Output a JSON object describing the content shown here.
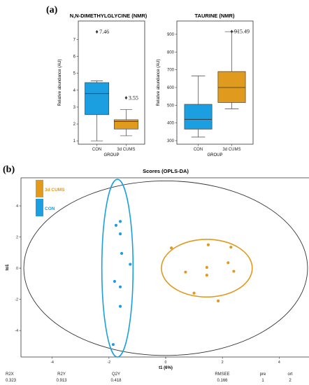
{
  "panel_a_label": "(a)",
  "panel_b_label": "(b)",
  "colors": {
    "con": "#1b9fe0",
    "cums": "#e09a1e",
    "axis": "#333333",
    "ellipse": "#333333"
  },
  "chart_data": [
    {
      "type": "box",
      "title": "N,N-DIMETHYLGLYCINE (NMR)",
      "xlabel": "GROUP",
      "ylabel": "Relative abundance (AU)",
      "categories": [
        "CON",
        "3d CUMS"
      ],
      "ylim": [
        0.8,
        8.1
      ],
      "yticks": [
        1,
        2,
        3,
        4,
        5,
        6,
        7
      ],
      "boxes": [
        {
          "group": "CON",
          "whisker_low": 1.0,
          "q1": 2.55,
          "median": 3.8,
          "q3": 4.45,
          "whisker_high": 4.55,
          "outlier": 7.46,
          "outlier_label": "7.46"
        },
        {
          "group": "3d CUMS",
          "whisker_low": 1.3,
          "q1": 1.7,
          "median": 2.15,
          "q3": 2.25,
          "whisker_high": 2.85,
          "outlier": 3.55,
          "outlier_label": "3.55"
        }
      ]
    },
    {
      "type": "box",
      "title": "TAURINE (NMR)",
      "xlabel": "GROUP",
      "ylabel": "Relative abundance (AU)",
      "categories": [
        "CON",
        "3d CUMS"
      ],
      "ylim": [
        280,
        975
      ],
      "yticks": [
        300,
        400,
        500,
        600,
        700,
        800,
        900
      ],
      "boxes": [
        {
          "group": "CON",
          "whisker_low": 320,
          "q1": 365,
          "median": 420,
          "q3": 505,
          "whisker_high": 665
        },
        {
          "group": "3d CUMS",
          "whisker_low": 480,
          "q1": 515,
          "median": 600,
          "q3": 690,
          "whisker_high": 915,
          "outlier": 915.49,
          "outlier_label": "915.49"
        }
      ]
    },
    {
      "type": "scatter",
      "title": "Scores (OPLS-DA)",
      "xlabel": "t1 (6%)",
      "ylabel": "to1",
      "xlim": [
        -5.1,
        5.1
      ],
      "ylim": [
        -5.7,
        5.8
      ],
      "xticks": [
        -4,
        -2,
        0,
        2,
        4
      ],
      "yticks": [
        -4,
        -2,
        0,
        2,
        4
      ],
      "legend": [
        "3d CUMS",
        "CON"
      ],
      "series": [
        {
          "name": "3d CUMS",
          "ellipse": {
            "cx": 1.45,
            "cy": 0,
            "rx": 1.6,
            "ry": 1.85
          },
          "x": [
            0.2,
            1.5,
            2.3,
            0.7,
            1.45,
            1.45,
            2.2,
            2.4,
            1.0,
            1.85
          ],
          "y": [
            1.3,
            1.5,
            1.35,
            -0.25,
            0.05,
            -0.45,
            0.35,
            -0.2,
            -1.6,
            -2.1
          ]
        },
        {
          "name": "CON",
          "ellipse": {
            "cx": -1.7,
            "cy": 0,
            "rx": 0.55,
            "ry": 5.7
          },
          "x": [
            -1.6,
            -1.75,
            -1.6,
            -1.55,
            -1.25,
            -1.8,
            -1.6,
            -1.6,
            -1.85
          ],
          "y": [
            3.0,
            2.75,
            2.2,
            0.95,
            0.25,
            -0.85,
            -1.2,
            -2.45,
            -4.9
          ]
        }
      ],
      "outer_ellipse": {
        "cx": 0,
        "cy": 0,
        "rx": 5.0,
        "ry": 5.6
      }
    }
  ],
  "stats": [
    {
      "label": "R2X",
      "value": "0.323"
    },
    {
      "label": "R2Y",
      "value": "0.913"
    },
    {
      "label": "Q2Y",
      "value": "0.418"
    },
    {
      "label": "RMSEE",
      "value": "0.166"
    },
    {
      "label": "pre",
      "value": "1"
    },
    {
      "label": "ort",
      "value": "2"
    }
  ]
}
